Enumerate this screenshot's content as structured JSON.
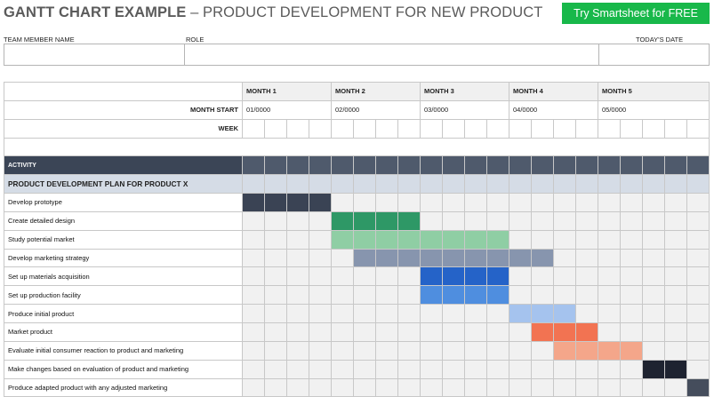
{
  "header": {
    "title_bold": "GANTT CHART EXAMPLE",
    "title_rest": " – PRODUCT DEVELOPMENT FOR NEW PRODUCT",
    "cta_label": "Try Smartsheet for FREE",
    "cta_color": "#18b84a"
  },
  "fields": {
    "team_member_label": "TEAM MEMBER NAME",
    "role_label": "ROLE",
    "date_label": "TODAY'S DATE",
    "team_member_value": "",
    "role_value": "",
    "date_value": ""
  },
  "timeline": {
    "month_start_label": "MONTH START",
    "week_label": "WEEK",
    "months": [
      {
        "name": "MONTH 1",
        "start": "01/0000"
      },
      {
        "name": "MONTH 2",
        "start": "02/0000"
      },
      {
        "name": "MONTH 3",
        "start": "03/0000"
      },
      {
        "name": "MONTH 4",
        "start": "04/0000"
      },
      {
        "name": "MONTH 5",
        "start": "05/0000"
      }
    ],
    "weeks_per_month": 4,
    "week_count": 21
  },
  "activity_header": "ACTIVITY",
  "plan_title": "PRODUCT DEVELOPMENT PLAN FOR PRODUCT X",
  "tasks": [
    {
      "name": "Develop prototype",
      "start_week": 1,
      "end_week": 4,
      "color": "#3a4354"
    },
    {
      "name": "Create detailed design",
      "start_week": 5,
      "end_week": 8,
      "color": "#2e9866"
    },
    {
      "name": "Study potential market",
      "start_week": 5,
      "end_week": 12,
      "color": "#8fcea4"
    },
    {
      "name": "Develop marketing strategy",
      "start_week": 6,
      "end_week": 14,
      "color": "#8795ae"
    },
    {
      "name": "Set up materials acquisition",
      "start_week": 9,
      "end_week": 12,
      "color": "#2563c8"
    },
    {
      "name": "Set up production facility",
      "start_week": 9,
      "end_week": 12,
      "color": "#4f8edf"
    },
    {
      "name": "Produce initial product",
      "start_week": 13,
      "end_week": 15,
      "color": "#a5c3ee"
    },
    {
      "name": "Market product",
      "start_week": 14,
      "end_week": 16,
      "color": "#f27352"
    },
    {
      "name": "Evaluate initial consumer reaction to product and marketing",
      "start_week": 15,
      "end_week": 18,
      "color": "#f4a68a"
    },
    {
      "name": "Make changes based on evaluation of product and marketing",
      "start_week": 19,
      "end_week": 20,
      "color": "#1e2330"
    },
    {
      "name": "Produce adapted product with any adjusted marketing",
      "start_week": 21,
      "end_week": 21,
      "color": "#454d5c"
    }
  ]
}
